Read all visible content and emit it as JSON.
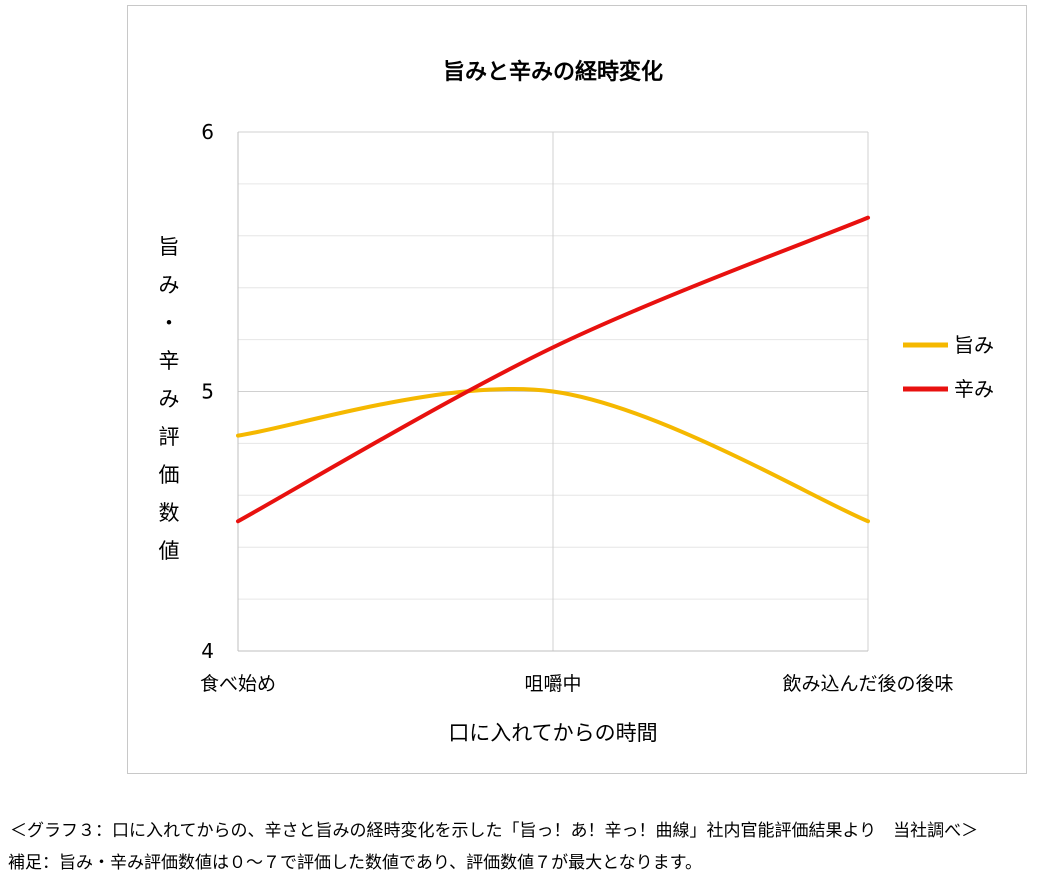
{
  "chart_data": {
    "type": "line",
    "title": "旨みと辛みの経時変化",
    "xlabel": "口に入れてからの時間",
    "ylabel": "旨み・辛み評価数値",
    "categories": [
      "食べ始め",
      "咀嚼中",
      "飲み込んだ後の後味"
    ],
    "ylim": [
      4,
      6
    ],
    "yticks": [
      "4",
      "5",
      "6"
    ],
    "grid": true,
    "smooth": true,
    "legend_position": "right",
    "series": [
      {
        "name": "旨み",
        "color": "#F5B800",
        "values": [
          4.83,
          5.0,
          4.5
        ]
      },
      {
        "name": "辛み",
        "color": "#E8110F",
        "values": [
          4.5,
          5.17,
          5.67
        ]
      }
    ]
  },
  "captions": {
    "line1": "＜グラフ３：口に入れてからの、辛さと旨みの経時変化を示した「旨っ！あ！辛っ！曲線」社内官能評価結果より　当社調べ＞",
    "line2": "補足：旨み・辛み評価数値は０～７で評価した数値であり、評価数値７が最大となります。"
  }
}
